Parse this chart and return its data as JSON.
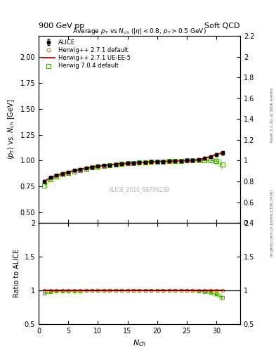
{
  "title_top": "900 GeV pp",
  "title_right": "Soft QCD",
  "plot_title": "Average $p_T$ vs $N_{ch}$ ($|\\eta| < 0.8$, $p_T > 0.5$ GeV)",
  "ylabel_main": "$\\langle p_T \\rangle$ vs. $N_{ch}$ [GeV]",
  "ylabel_ratio": "Ratio to ALICE",
  "xlabel": "$N_{ch}$",
  "ylim_main": [
    0.4,
    2.2
  ],
  "ylim_ratio": [
    0.5,
    2.0
  ],
  "xlim": [
    0,
    34
  ],
  "watermark": "ALICE_2010_S8706239",
  "right_label": "mcplots.cern.ch [arXiv:1306.3436]",
  "rivet_label": "Rivet 3.1.10, ≥ 500k events",
  "alice_x": [
    1,
    2,
    3,
    4,
    5,
    6,
    7,
    8,
    9,
    10,
    11,
    12,
    13,
    14,
    15,
    16,
    17,
    18,
    19,
    20,
    21,
    22,
    23,
    24,
    25,
    26,
    27,
    28,
    29,
    30,
    31
  ],
  "alice_y": [
    0.8,
    0.838,
    0.858,
    0.874,
    0.89,
    0.905,
    0.917,
    0.928,
    0.937,
    0.946,
    0.953,
    0.959,
    0.965,
    0.97,
    0.974,
    0.978,
    0.981,
    0.984,
    0.987,
    0.99,
    0.992,
    0.994,
    0.996,
    0.998,
    1.0,
    1.003,
    1.01,
    1.022,
    1.04,
    1.06,
    1.075
  ],
  "alice_yerr": [
    0.012,
    0.008,
    0.007,
    0.006,
    0.006,
    0.005,
    0.005,
    0.005,
    0.005,
    0.005,
    0.005,
    0.005,
    0.005,
    0.005,
    0.004,
    0.004,
    0.004,
    0.004,
    0.004,
    0.004,
    0.004,
    0.004,
    0.004,
    0.005,
    0.005,
    0.006,
    0.007,
    0.008,
    0.01,
    0.013,
    0.018
  ],
  "herwig271_x": [
    1,
    2,
    3,
    4,
    5,
    6,
    7,
    8,
    9,
    10,
    11,
    12,
    13,
    14,
    15,
    16,
    17,
    18,
    19,
    20,
    21,
    22,
    23,
    24,
    25,
    26,
    27,
    28,
    29,
    30,
    31
  ],
  "herwig271_y": [
    0.798,
    0.836,
    0.856,
    0.872,
    0.888,
    0.903,
    0.915,
    0.926,
    0.935,
    0.944,
    0.951,
    0.957,
    0.963,
    0.968,
    0.972,
    0.976,
    0.979,
    0.982,
    0.985,
    0.988,
    0.99,
    0.992,
    0.994,
    0.996,
    0.998,
    1.001,
    1.008,
    1.02,
    1.038,
    1.058,
    1.073
  ],
  "herwig271_yerr": [
    0.01,
    0.007,
    0.006,
    0.005,
    0.005,
    0.004,
    0.004,
    0.004,
    0.004,
    0.004,
    0.004,
    0.004,
    0.004,
    0.004,
    0.004,
    0.004,
    0.004,
    0.004,
    0.004,
    0.004,
    0.004,
    0.004,
    0.004,
    0.004,
    0.004,
    0.005,
    0.006,
    0.008,
    0.01,
    0.013,
    0.02
  ],
  "herwig271ue_x": [
    1,
    2,
    3,
    4,
    5,
    6,
    7,
    8,
    9,
    10,
    11,
    12,
    13,
    14,
    15,
    16,
    17,
    18,
    19,
    20,
    21,
    22,
    23,
    24,
    25,
    26,
    27,
    28,
    29,
    30,
    31
  ],
  "herwig271ue_y": [
    0.801,
    0.839,
    0.859,
    0.875,
    0.891,
    0.906,
    0.918,
    0.929,
    0.938,
    0.947,
    0.954,
    0.96,
    0.966,
    0.971,
    0.975,
    0.979,
    0.982,
    0.985,
    0.988,
    0.991,
    0.993,
    0.995,
    0.997,
    0.999,
    1.001,
    1.004,
    1.011,
    1.023,
    1.041,
    1.061,
    1.076
  ],
  "herwig704_x": [
    1,
    2,
    3,
    4,
    5,
    6,
    7,
    8,
    9,
    10,
    11,
    12,
    13,
    14,
    15,
    16,
    17,
    18,
    19,
    20,
    21,
    22,
    23,
    24,
    25,
    26,
    27,
    28,
    29,
    30,
    31
  ],
  "herwig704_y": [
    0.762,
    0.82,
    0.848,
    0.866,
    0.882,
    0.898,
    0.911,
    0.923,
    0.933,
    0.942,
    0.95,
    0.957,
    0.963,
    0.968,
    0.973,
    0.977,
    0.981,
    0.984,
    0.987,
    0.99,
    0.992,
    0.994,
    0.996,
    0.998,
    1.0,
    1.001,
    1.003,
    1.003,
    1.001,
    0.998,
    0.96
  ],
  "herwig704_yerr": [
    0.018,
    0.012,
    0.009,
    0.008,
    0.007,
    0.006,
    0.006,
    0.005,
    0.005,
    0.005,
    0.005,
    0.005,
    0.005,
    0.005,
    0.004,
    0.004,
    0.004,
    0.004,
    0.004,
    0.004,
    0.004,
    0.004,
    0.004,
    0.005,
    0.005,
    0.008,
    0.012,
    0.018,
    0.025,
    0.035,
    0.055
  ],
  "alice_color": "#000000",
  "herwig271_color": "#cc7700",
  "herwig271ue_color": "#cc0000",
  "herwig704_color": "#44aa00",
  "bg_color": "#ffffff"
}
